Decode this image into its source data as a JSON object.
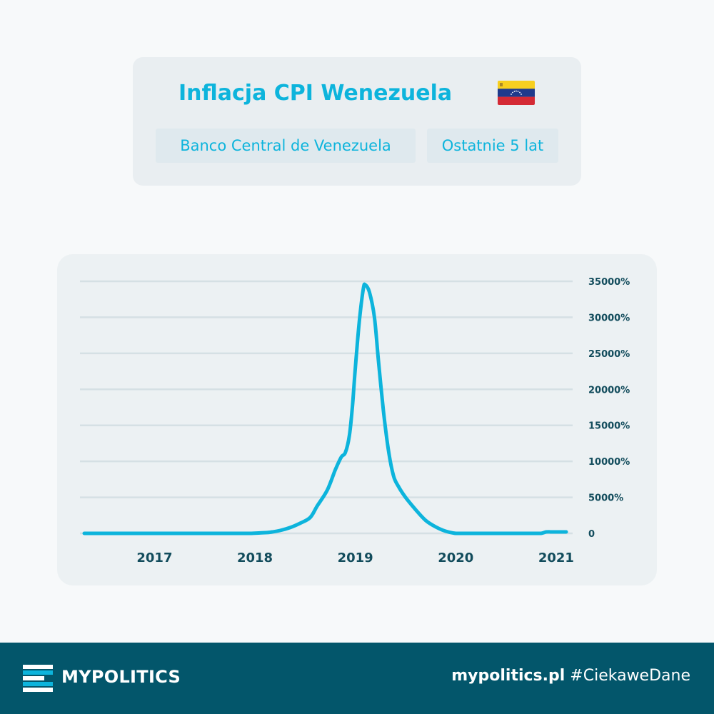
{
  "header": {
    "title": "Inflacja CPI Wenezuela",
    "source_tag": "Banco Central de Venezuela",
    "period_tag": "Ostatnie 5 lat",
    "flag_colors": [
      "#f7cf1f",
      "#1f3a8c",
      "#d42a35"
    ]
  },
  "chart_data": {
    "type": "line",
    "title": "",
    "xlabel": "",
    "ylabel": "",
    "x_ticks": [
      "2017",
      "2018",
      "2019",
      "2020",
      "2021"
    ],
    "y_ticks": [
      "35000%",
      "30000%",
      "25000%",
      "20000%",
      "15000%",
      "10000%",
      "5000%",
      "0"
    ],
    "xlim": [
      2016.3,
      2021.15
    ],
    "ylim": [
      0,
      35000
    ],
    "grid": true,
    "line_color": "#0db4dc",
    "series": [
      {
        "x": [
          2016.3,
          2016.6,
          2016.9,
          2017.2,
          2017.5,
          2017.8,
          2017.95,
          2018.05,
          2018.15,
          2018.25,
          2018.35,
          2018.45,
          2018.55,
          2018.62,
          2018.72,
          2018.8,
          2018.86,
          2018.9,
          2018.94,
          2018.97,
          2019.0,
          2019.04,
          2019.08,
          2019.1,
          2019.14,
          2019.19,
          2019.23,
          2019.28,
          2019.33,
          2019.38,
          2019.43,
          2019.5,
          2019.6,
          2019.7,
          2019.8,
          2019.9,
          2020.0,
          2020.1,
          2020.2,
          2020.35,
          2020.5,
          2020.65,
          2020.75,
          2020.85,
          2020.9,
          2020.95,
          2021.0,
          2021.1
        ],
        "y": [
          0,
          0,
          0,
          0,
          0,
          0,
          0,
          60,
          150,
          400,
          800,
          1400,
          2200,
          3800,
          6000,
          8800,
          10600,
          11200,
          13500,
          17500,
          23000,
          29500,
          34000,
          34500,
          33500,
          30000,
          24000,
          17000,
          11500,
          8000,
          6500,
          5000,
          3300,
          1800,
          900,
          300,
          0,
          0,
          0,
          0,
          0,
          0,
          0,
          0,
          200,
          200,
          200,
          200
        ]
      }
    ]
  },
  "footer": {
    "brand": "MYPOLITICS",
    "site": "mypolitics.pl",
    "hashtag": " #CiekaweDane",
    "logo_colors": [
      "#ffffff",
      "#0db4dc"
    ]
  }
}
